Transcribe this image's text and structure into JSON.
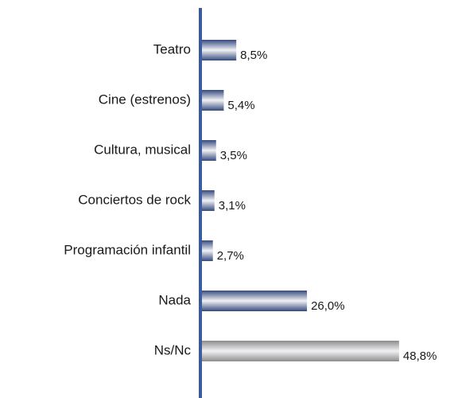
{
  "chart_data": {
    "type": "hbar",
    "categories": [
      "Teatro",
      "Cine (estrenos)",
      "Cultura, musical",
      "Conciertos de rock",
      "Programación infantil",
      "Nada",
      "Ns/Nc"
    ],
    "values": [
      8.5,
      5.4,
      3.5,
      3.1,
      2.7,
      26.0,
      48.8
    ],
    "value_labels": [
      "8,5%",
      "5,4%",
      "3,5%",
      "3,1%",
      "2,7%",
      "26,0%",
      "48,8%"
    ],
    "colors": [
      "#34497f",
      "#34497f",
      "#34497f",
      "#34497f",
      "#34497f",
      "#34497f",
      "#8c8c8c"
    ],
    "xlim": [
      0,
      50
    ]
  }
}
